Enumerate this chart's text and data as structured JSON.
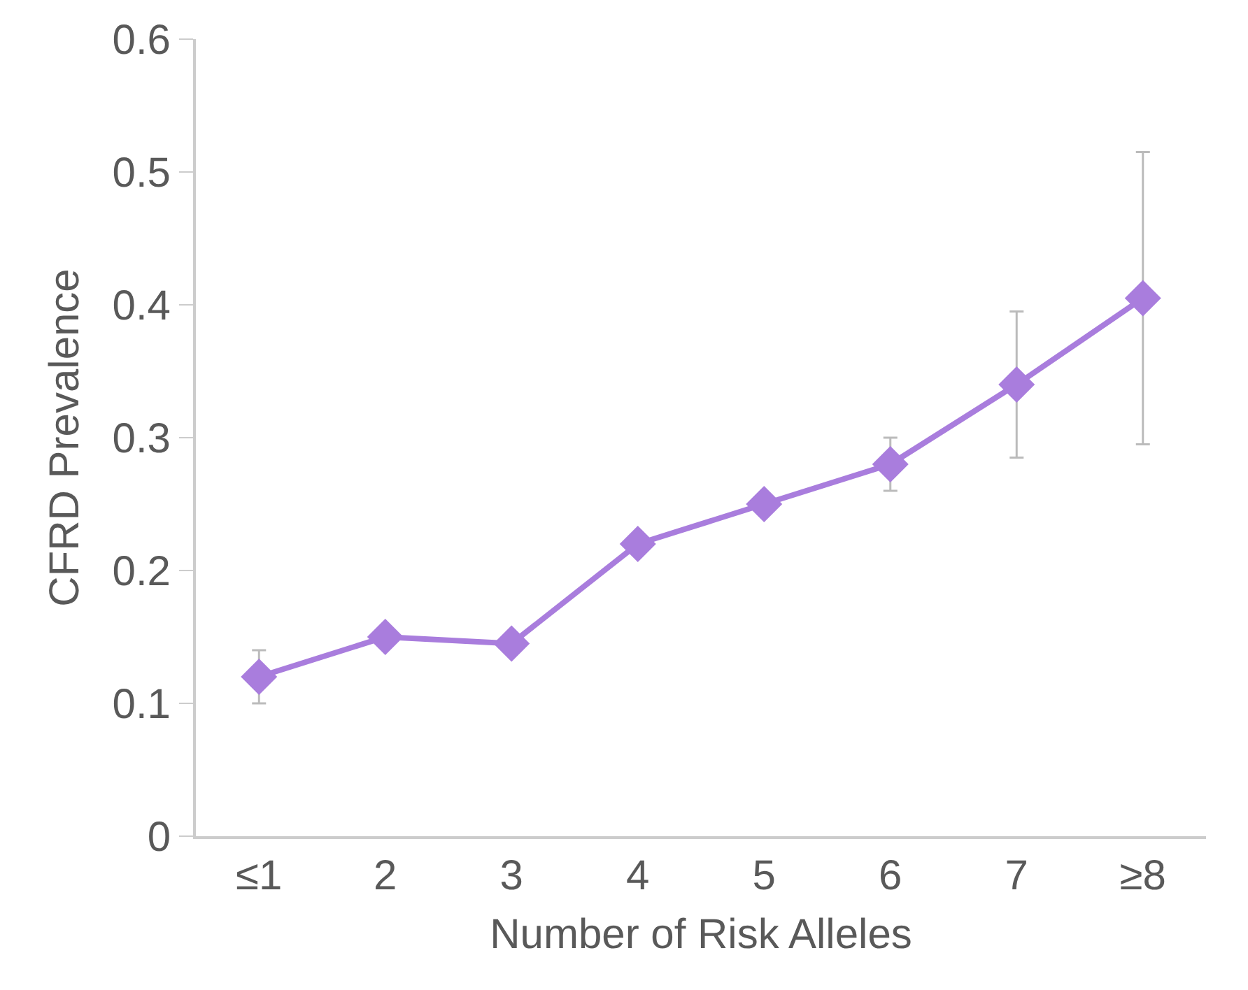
{
  "chart_data": {
    "type": "line",
    "xlabel": "Number of Risk Alleles",
    "ylabel": "CFRD Prevalence",
    "categories": [
      "≤1",
      "2",
      "3",
      "4",
      "5",
      "6",
      "7",
      "≥8"
    ],
    "series": [
      {
        "color": "#a97ddd",
        "values": [
          0.12,
          0.15,
          0.145,
          0.22,
          0.25,
          0.28,
          0.34,
          0.405
        ],
        "errors": [
          [
            0.1,
            0.14
          ],
          null,
          null,
          null,
          null,
          [
            0.26,
            0.3
          ],
          [
            0.285,
            0.395
          ],
          [
            0.295,
            0.515
          ]
        ]
      }
    ],
    "ylim": [
      0,
      0.6
    ],
    "yticks": [
      {
        "value": 0,
        "label": "0"
      },
      0.1,
      0.2,
      0.3,
      0.4,
      0.5,
      0.6
    ],
    "marker": "diamond",
    "line_style": "solid",
    "legend": false
  }
}
